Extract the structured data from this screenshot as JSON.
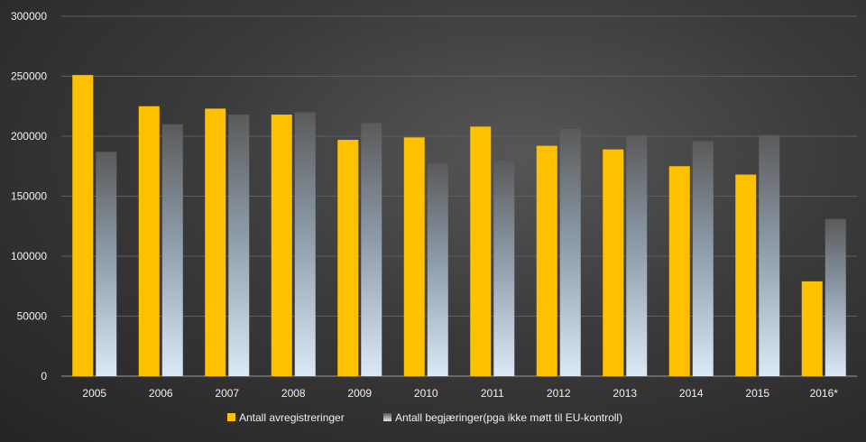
{
  "chart_data": {
    "type": "bar",
    "categories": [
      "2005",
      "2006",
      "2007",
      "2008",
      "2009",
      "2010",
      "2011",
      "2012",
      "2013",
      "2014",
      "2015",
      "2016*"
    ],
    "series": [
      {
        "name": "Antall avregistreringer",
        "color": "#ffc000",
        "values": [
          251000,
          225000,
          223000,
          218000,
          197000,
          199000,
          208000,
          192000,
          189000,
          175000,
          168000,
          79000
        ]
      },
      {
        "name": "Antall begjæringer(pga ikke møtt til EU-kontroll)",
        "color": "gradient-grey-to-lightblue",
        "values": [
          187000,
          210000,
          218000,
          220000,
          211000,
          177000,
          180000,
          206000,
          201000,
          196000,
          201000,
          131000
        ]
      }
    ],
    "yticks": [
      "0",
      "50000",
      "100000",
      "150000",
      "200000",
      "250000",
      "300000"
    ],
    "ylim": [
      0,
      300000
    ],
    "grid": true,
    "legend": "bottom",
    "title": "",
    "xlabel": "",
    "ylabel": ""
  }
}
